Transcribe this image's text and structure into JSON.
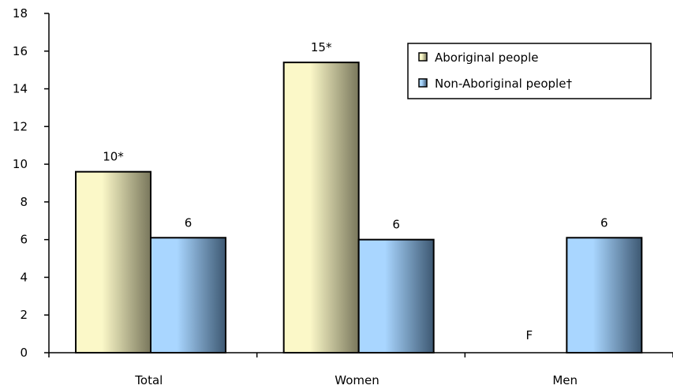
{
  "chart_data": {
    "type": "bar",
    "categories": [
      "Total",
      "Women",
      "Men"
    ],
    "series": [
      {
        "name": "Aboriginal people",
        "values": [
          9.6,
          15.4,
          null
        ],
        "labels": [
          "10*",
          "15*",
          "F"
        ],
        "color_light": "#fbf8c8",
        "color_dark": "#79775c"
      },
      {
        "name": "Non-Aboriginal people†",
        "values": [
          6.1,
          6.0,
          6.1
        ],
        "labels": [
          "6",
          "6",
          "6"
        ],
        "color_light": "#a9d6ff",
        "color_dark": "#3d5872"
      }
    ],
    "ylim": [
      0,
      18
    ],
    "yticks": [
      0,
      2,
      4,
      6,
      8,
      10,
      12,
      14,
      16,
      18
    ],
    "ytick_labels": [
      "0",
      "2",
      "4",
      "6",
      "8",
      "10",
      "12",
      "14",
      "16",
      "18"
    ],
    "title": "",
    "xlabel": "",
    "ylabel": "",
    "grid": false,
    "legend_position": "top-right"
  }
}
